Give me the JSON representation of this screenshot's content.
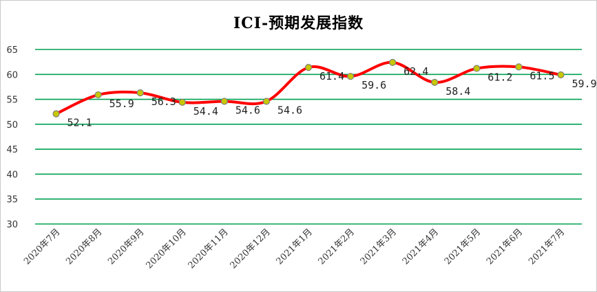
{
  "chart_data": {
    "type": "line",
    "title": "ICI-预期发展指数",
    "xlabel": "",
    "ylabel": "",
    "categories": [
      "2020年7月",
      "2020年8月",
      "2020年9月",
      "2020年10月",
      "2020年11月",
      "2020年12月",
      "2021年1月",
      "2021年2月",
      "2021年3月",
      "2021年4月",
      "2021年5月",
      "2021年6月",
      "2021年7月"
    ],
    "series": [
      {
        "values": [
          52.1,
          55.9,
          56.3,
          54.4,
          54.6,
          54.6,
          61.4,
          59.6,
          62.4,
          58.4,
          61.2,
          61.5,
          59.9
        ]
      }
    ],
    "data_labels": [
      "52.1",
      "55.9",
      "56.3",
      "54.4",
      "54.6",
      "54.6",
      "61.4",
      "59.6",
      "62.4",
      "58.4",
      "61.2",
      "61.5",
      "59.9"
    ],
    "ylim": [
      30,
      65
    ],
    "yticks": [
      30,
      35,
      40,
      45,
      50,
      55,
      60,
      65
    ],
    "grid": true,
    "legend": "none",
    "smooth": true,
    "colors": {
      "line": "#ff0000",
      "grid": "#00a050",
      "marker_fill": "#c8c800",
      "marker_edge": "#7f7f7f"
    }
  }
}
